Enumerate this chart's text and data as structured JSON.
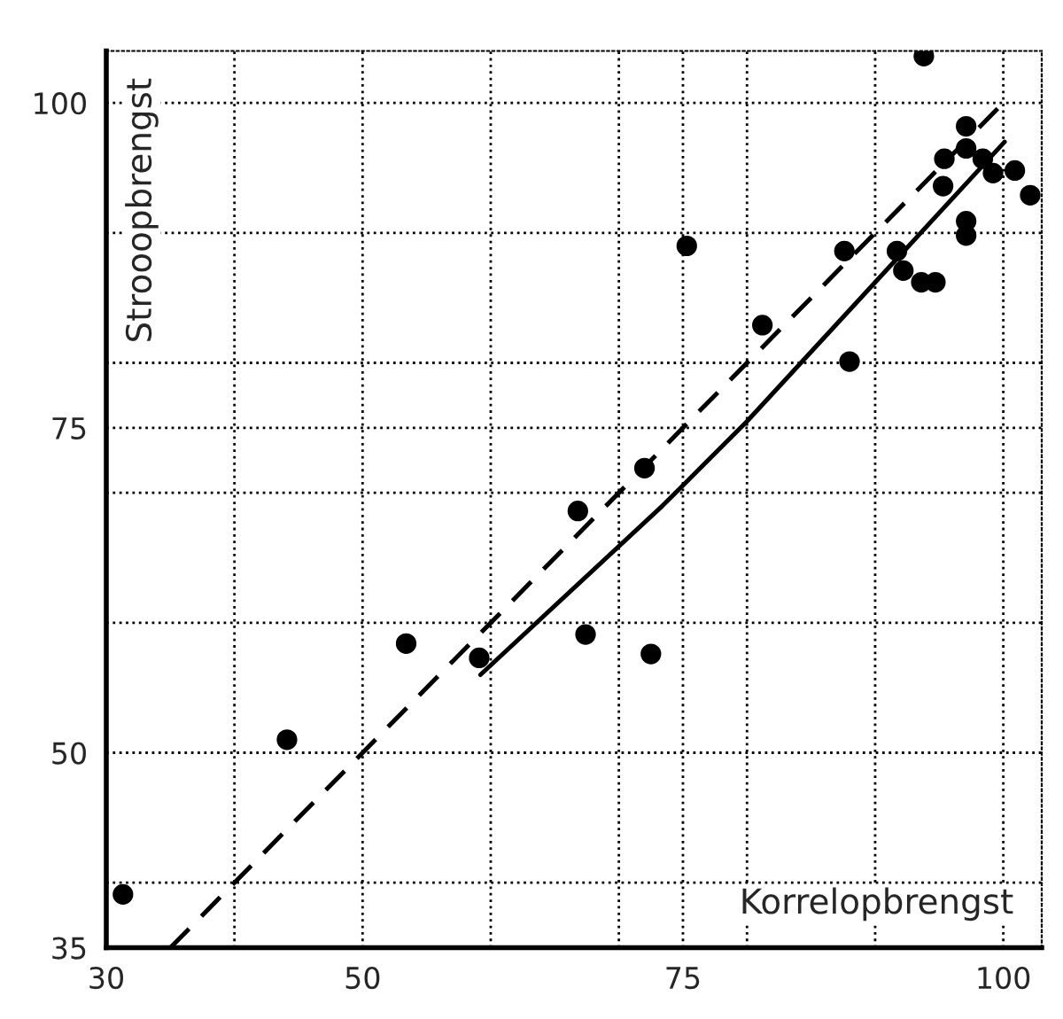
{
  "chart_data": {
    "type": "scatter",
    "xlabel": "Korrelopbrengst",
    "ylabel": "Strooopbrengst",
    "series": [
      {
        "color": "#000000",
        "marker": "circle",
        "x": [
          93.8,
          97.1,
          95.4,
          97.1,
          98.4,
          99.2,
          100.9,
          102.1,
          95.3,
          97.1,
          97.1,
          75.3,
          87.6,
          91.7,
          92.2,
          93.6,
          94.7,
          81.2,
          88.0,
          72.0,
          66.8,
          53.4,
          59.1,
          67.4,
          72.5,
          44.1,
          31.3
        ],
        "values": [
          103.6,
          98.2,
          95.7,
          96.5,
          95.7,
          94.6,
          94.8,
          92.9,
          93.6,
          90.9,
          89.8,
          89.0,
          88.6,
          88.6,
          87.1,
          86.2,
          86.2,
          82.9,
          80.1,
          71.9,
          68.6,
          58.4,
          57.3,
          59.1,
          57.6,
          51.0,
          39.1
        ]
      },
      {
        "type": "line",
        "color": "#000000",
        "line_style": "dashed",
        "x": [
          35,
          100.4
        ],
        "values": [
          35,
          100.4
        ]
      },
      {
        "type": "line",
        "color": "#000000",
        "line_style": "solid",
        "x": [
          59.2,
          73.4,
          80,
          100.1
        ],
        "values": [
          56,
          69,
          75.5,
          97
        ]
      }
    ],
    "xlim": [
      30,
      103
    ],
    "ylim": [
      35,
      104
    ],
    "xticks": [
      30,
      {
        "value": 40,
        "label": null
      },
      50,
      {
        "value": 60,
        "label": null
      },
      {
        "value": 70,
        "label": null
      },
      75,
      {
        "value": 80,
        "label": null
      },
      {
        "value": 90,
        "label": null
      },
      100
    ],
    "yticks": [
      35,
      {
        "value": 40,
        "label": null
      },
      50,
      {
        "value": 60,
        "label": null
      },
      {
        "value": 70,
        "label": null
      },
      75,
      {
        "value": 80,
        "label": null
      },
      {
        "value": 90,
        "label": null
      },
      100
    ],
    "grid": true
  }
}
